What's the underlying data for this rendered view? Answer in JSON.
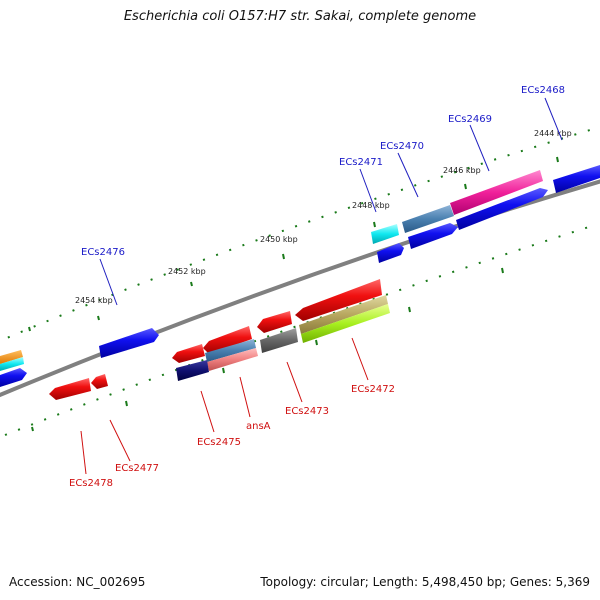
{
  "map": {
    "title": "Escherichia coli O157:H7 str. Sakai, complete genome",
    "accession": "Accession: NC_002695",
    "summary": "Topology: circular; Length: 5,498,450 bp; Genes: 5,369"
  },
  "scale_labels": [
    "2444 kbp",
    "2446 kbp",
    "2448 kbp",
    "2450 kbp",
    "2452 kbp",
    "2454 kbp"
  ],
  "gene_labels": {
    "forward": [
      "ECs2468",
      "ECs2469",
      "ECs2470",
      "ECs2471",
      "ECs2476"
    ],
    "reverse": [
      "ECs2472",
      "ECs2473",
      "ansA",
      "ECs2475",
      "ECs2477",
      "ECs2478"
    ]
  },
  "colors": {
    "backbone": "#808080",
    "tick": "#1a7a1a",
    "forward_gene": "#1010e0",
    "reverse_gene": "#e01010",
    "forward_label": "#1a1ac8",
    "reverse_label": "#d01010"
  }
}
